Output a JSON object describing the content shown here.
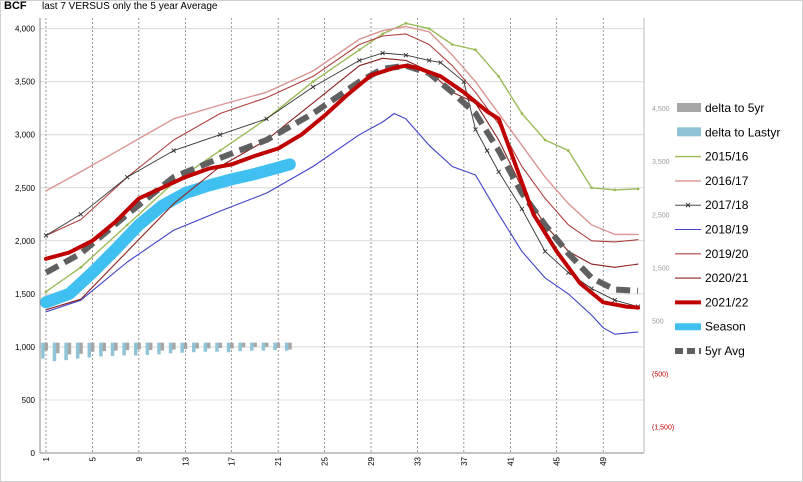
{
  "chart_data": {
    "type": "line",
    "title": "BCF",
    "subtitle": "last 7 VERSUS only the 5 year Average",
    "xlabel": "",
    "ylabel": "",
    "xlim": [
      1,
      52
    ],
    "ylim": [
      0,
      4100
    ],
    "y_ticks": [
      0,
      500,
      1000,
      1500,
      2000,
      2500,
      3000,
      3500,
      4000
    ],
    "y_tick_labels": [
      "0",
      "500",
      "1,000",
      "1,500",
      "2,000",
      "2,500",
      "3,000",
      "3,500",
      "4,000"
    ],
    "x_ticks": [
      1,
      5,
      9,
      13,
      17,
      21,
      25,
      29,
      33,
      37,
      41,
      45,
      49
    ],
    "y2_ticks": [
      -1500,
      -500,
      500,
      1500,
      2500,
      3500,
      4500
    ],
    "y2_tick_labels": [
      "(1,500)",
      "(500)",
      "500",
      "1,500",
      "2,500",
      "3,500",
      "4,500"
    ],
    "grid": true,
    "legend_position": "right",
    "series": [
      {
        "name": "2015/16",
        "color": "#9bbb59",
        "marker": "dot",
        "width": 1.4,
        "x": [
          1,
          4,
          8,
          12,
          16,
          20,
          24,
          28,
          30,
          32,
          34,
          36,
          38,
          40,
          42,
          44,
          46,
          48,
          50,
          52
        ],
        "y": [
          1520,
          1750,
          2150,
          2550,
          2850,
          3150,
          3500,
          3800,
          3950,
          4050,
          4000,
          3850,
          3800,
          3550,
          3200,
          2950,
          2850,
          2500,
          2480,
          2490
        ]
      },
      {
        "name": "2016/17",
        "color": "#d99594",
        "marker": "none",
        "width": 1.4,
        "x": [
          1,
          4,
          8,
          12,
          16,
          20,
          24,
          28,
          30,
          32,
          34,
          36,
          38,
          40,
          42,
          44,
          46,
          48,
          50,
          52
        ],
        "y": [
          2470,
          2650,
          2900,
          3150,
          3280,
          3400,
          3600,
          3900,
          3980,
          4020,
          3970,
          3750,
          3500,
          3200,
          2900,
          2600,
          2350,
          2150,
          2060,
          2060
        ]
      },
      {
        "name": "2017/18",
        "color": "#333333",
        "marker": "x",
        "width": 0.9,
        "x": [
          1,
          4,
          8,
          12,
          16,
          20,
          24,
          28,
          30,
          32,
          34,
          35,
          37,
          38,
          39,
          40,
          42,
          44,
          46,
          48,
          50,
          52
        ],
        "y": [
          2050,
          2250,
          2600,
          2850,
          3000,
          3150,
          3450,
          3700,
          3770,
          3750,
          3700,
          3680,
          3500,
          3050,
          2850,
          2650,
          2300,
          1900,
          1700,
          1550,
          1440,
          1380
        ]
      },
      {
        "name": "2018/19",
        "color": "#4040c8",
        "marker": "none",
        "width": 1.1,
        "x": [
          1,
          4,
          8,
          12,
          16,
          20,
          24,
          28,
          30,
          31,
          32,
          34,
          36,
          38,
          40,
          42,
          44,
          46,
          48,
          49,
          50,
          52
        ],
        "y": [
          1330,
          1440,
          1800,
          2100,
          2280,
          2450,
          2700,
          3000,
          3120,
          3200,
          3150,
          2900,
          2700,
          2620,
          2250,
          1900,
          1650,
          1500,
          1300,
          1180,
          1120,
          1140
        ]
      },
      {
        "name": "2019/20",
        "color": "#b04040",
        "marker": "none",
        "width": 1.1,
        "x": [
          1,
          4,
          8,
          12,
          16,
          20,
          24,
          28,
          30,
          32,
          34,
          36,
          38,
          40,
          42,
          44,
          46,
          48,
          50,
          52
        ],
        "y": [
          2050,
          2200,
          2600,
          2950,
          3200,
          3350,
          3550,
          3850,
          3930,
          3950,
          3850,
          3650,
          3400,
          3100,
          2700,
          2400,
          2150,
          2000,
          1990,
          2010
        ]
      },
      {
        "name": "2020/21",
        "color": "#8b2020",
        "marker": "none",
        "width": 1.1,
        "x": [
          1,
          4,
          8,
          12,
          16,
          20,
          24,
          28,
          30,
          32,
          34,
          36,
          38,
          40,
          42,
          44,
          46,
          48,
          50,
          52
        ],
        "y": [
          1350,
          1450,
          1900,
          2350,
          2700,
          2950,
          3300,
          3650,
          3720,
          3700,
          3600,
          3400,
          3300,
          2950,
          2500,
          2150,
          1900,
          1780,
          1750,
          1780
        ]
      },
      {
        "name": "2021/22",
        "color": "#c00000",
        "marker": "none",
        "width": 4,
        "x": [
          1,
          3,
          5,
          7,
          9,
          11,
          13,
          15,
          17,
          19,
          21,
          23,
          25,
          27,
          29,
          31,
          32,
          33,
          35,
          37,
          39,
          40,
          41,
          42,
          43,
          45,
          47,
          49,
          51,
          52
        ],
        "y": [
          1830,
          1890,
          2000,
          2180,
          2400,
          2500,
          2600,
          2680,
          2720,
          2800,
          2870,
          3000,
          3180,
          3380,
          3560,
          3630,
          3650,
          3630,
          3550,
          3400,
          3220,
          3150,
          2850,
          2550,
          2250,
          1900,
          1600,
          1420,
          1380,
          1370
        ]
      },
      {
        "name": "5yr Avg",
        "color": "#606060",
        "marker": "none",
        "width": 6,
        "dash": true,
        "x": [
          1,
          4,
          8,
          12,
          16,
          20,
          24,
          28,
          30,
          32,
          34,
          36,
          38,
          40,
          42,
          44,
          46,
          48,
          50,
          52
        ],
        "y": [
          1700,
          1880,
          2250,
          2600,
          2780,
          2950,
          3200,
          3500,
          3620,
          3650,
          3580,
          3400,
          3200,
          2850,
          2450,
          2150,
          1880,
          1650,
          1540,
          1530
        ]
      },
      {
        "name": "Season",
        "color": "#40c0f0",
        "marker": "none",
        "width": 12,
        "x": [
          1,
          3,
          5,
          7,
          9,
          11,
          13,
          15,
          17,
          19,
          21,
          22
        ],
        "y": [
          1420,
          1500,
          1700,
          1920,
          2150,
          2330,
          2450,
          2520,
          2580,
          2630,
          2690,
          2720
        ]
      }
    ],
    "bars_delta_5yr": {
      "name": "delta to 5yr",
      "color": "#a6a6a6",
      "x": [
        1,
        2,
        3,
        4,
        5,
        6,
        7,
        8,
        9,
        10,
        11,
        12,
        13,
        14,
        15,
        16,
        17,
        18,
        19,
        20,
        21,
        22
      ],
      "values": [
        -150,
        -200,
        -220,
        -210,
        -170,
        -160,
        -150,
        -140,
        -130,
        -140,
        -150,
        -130,
        -120,
        -110,
        -110,
        -100,
        -110,
        -90,
        -80,
        -80,
        -100,
        -130
      ]
    },
    "bars_delta_lastyr": {
      "name": "delta to Lastyr",
      "color": "#8fc4d6",
      "x": [
        1,
        2,
        3,
        4,
        5,
        6,
        7,
        8,
        9,
        10,
        11,
        12,
        13,
        14,
        15,
        16,
        17,
        18,
        19,
        20,
        21,
        22
      ],
      "values": [
        -300,
        -350,
        -330,
        -300,
        -280,
        -260,
        -250,
        -240,
        -240,
        -230,
        -220,
        -200,
        -190,
        -180,
        -170,
        -170,
        -180,
        -160,
        -150,
        -150,
        -140,
        -150
      ]
    },
    "legend": [
      "delta to 5yr",
      "delta to Lastyr",
      "2015/16",
      "2016/17",
      "2017/18",
      "2018/19",
      "2019/20",
      "2020/21",
      "2021/22",
      "Season",
      "5yr Avg"
    ]
  }
}
